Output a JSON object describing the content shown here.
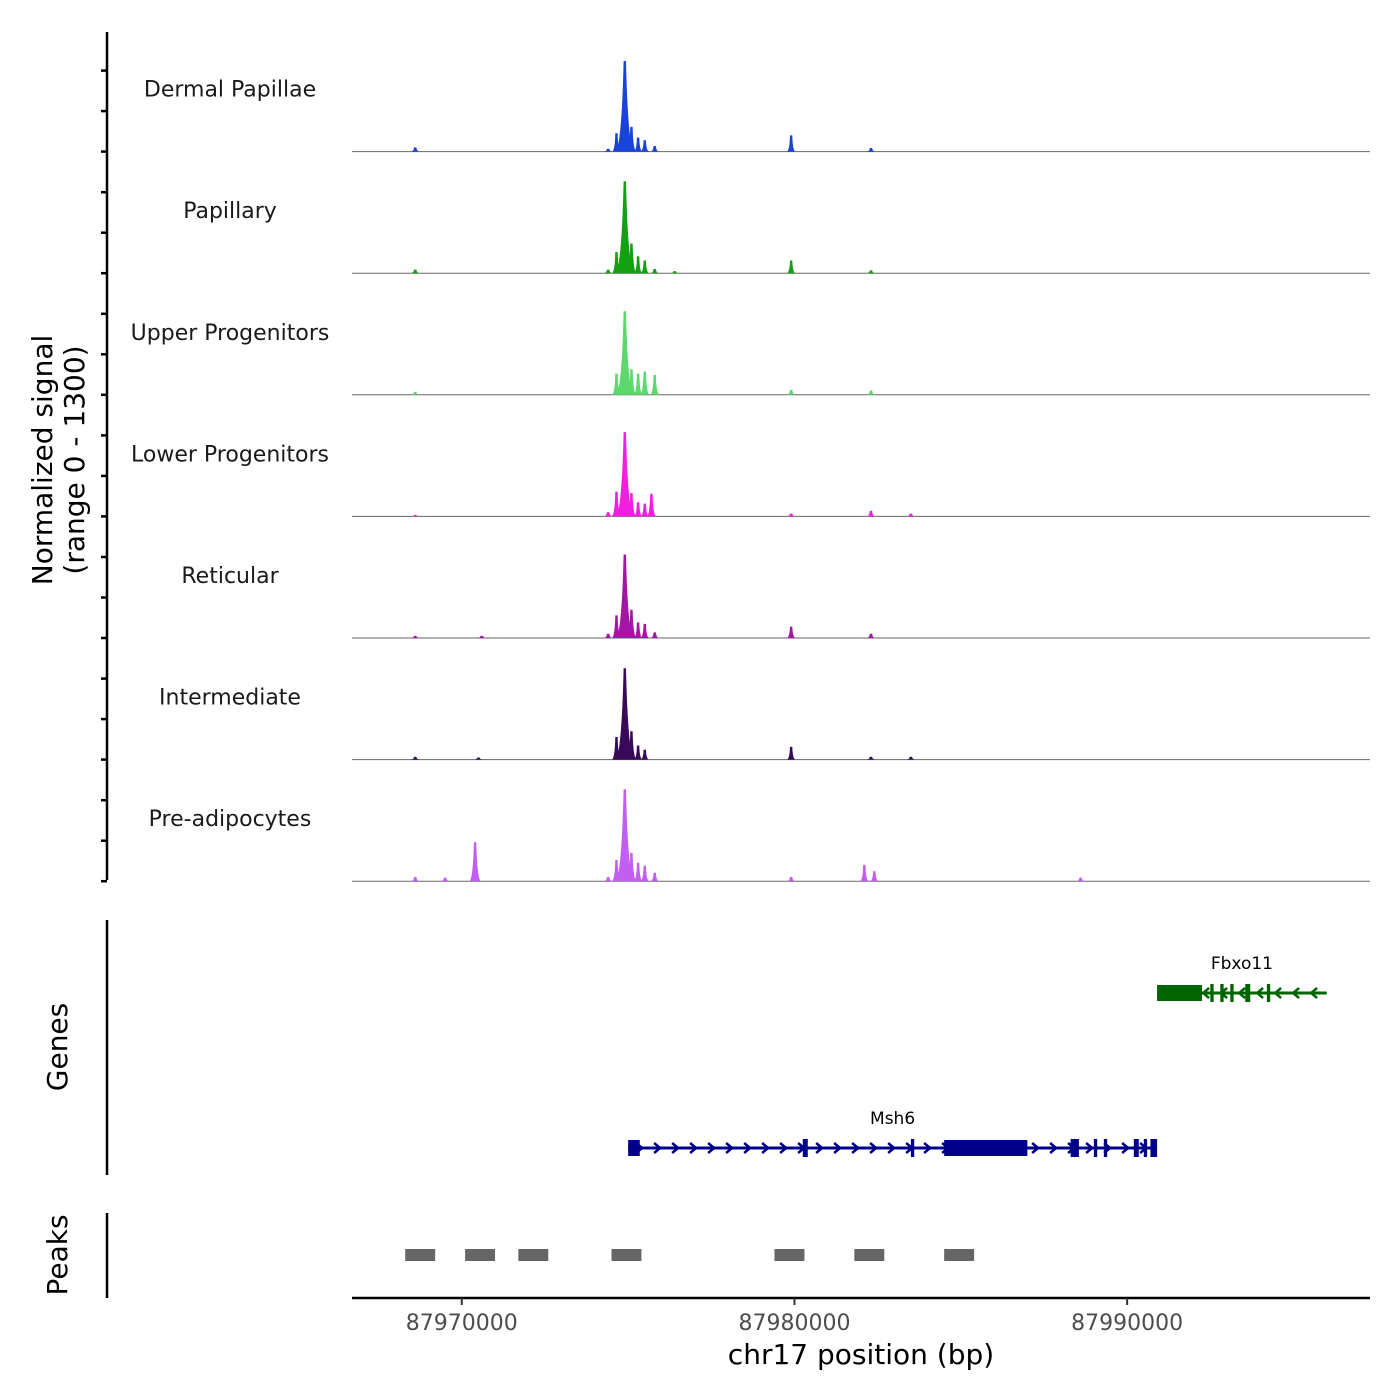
{
  "chart_data": {
    "type": "area",
    "title": "",
    "xlabel": "chr17 position (bp)",
    "ylabel_line1": "Normalized signal",
    "ylabel_line2": "(range 0 - 1300)",
    "xlim": [
      87966700,
      87997300
    ],
    "ylim": [
      0,
      1300
    ],
    "x_ticks": [
      87970000,
      87980000,
      87990000
    ],
    "x_tick_labels": [
      "87970000",
      "87980000",
      "87990000"
    ],
    "tracks": [
      {
        "name": "Dermal Papillae",
        "color": "#1a44d9",
        "peaks": [
          {
            "pos": 87968600,
            "height": 60
          },
          {
            "pos": 87974400,
            "height": 40
          },
          {
            "pos": 87974650,
            "height": 260
          },
          {
            "pos": 87974900,
            "height": 1280
          },
          {
            "pos": 87975100,
            "height": 350
          },
          {
            "pos": 87975300,
            "height": 200
          },
          {
            "pos": 87975500,
            "height": 160
          },
          {
            "pos": 87975800,
            "height": 80
          },
          {
            "pos": 87979900,
            "height": 230
          },
          {
            "pos": 87982300,
            "height": 50
          }
        ]
      },
      {
        "name": "Papillary",
        "color": "#13a013",
        "peaks": [
          {
            "pos": 87968600,
            "height": 50
          },
          {
            "pos": 87974400,
            "height": 50
          },
          {
            "pos": 87974650,
            "height": 300
          },
          {
            "pos": 87974900,
            "height": 1300
          },
          {
            "pos": 87975100,
            "height": 420
          },
          {
            "pos": 87975300,
            "height": 240
          },
          {
            "pos": 87975500,
            "height": 180
          },
          {
            "pos": 87975800,
            "height": 60
          },
          {
            "pos": 87976400,
            "height": 30
          },
          {
            "pos": 87979900,
            "height": 180
          },
          {
            "pos": 87982300,
            "height": 40
          }
        ]
      },
      {
        "name": "Upper Progenitors",
        "color": "#5cd86c",
        "peaks": [
          {
            "pos": 87968600,
            "height": 40
          },
          {
            "pos": 87974650,
            "height": 300
          },
          {
            "pos": 87974900,
            "height": 1180
          },
          {
            "pos": 87975100,
            "height": 360
          },
          {
            "pos": 87975300,
            "height": 300
          },
          {
            "pos": 87975500,
            "height": 330
          },
          {
            "pos": 87975800,
            "height": 280
          },
          {
            "pos": 87979900,
            "height": 70
          },
          {
            "pos": 87982300,
            "height": 60
          }
        ]
      },
      {
        "name": "Lower Progenitors",
        "color": "#f21fe2",
        "peaks": [
          {
            "pos": 87968600,
            "height": 20
          },
          {
            "pos": 87974400,
            "height": 60
          },
          {
            "pos": 87974650,
            "height": 350
          },
          {
            "pos": 87974900,
            "height": 1190
          },
          {
            "pos": 87975100,
            "height": 330
          },
          {
            "pos": 87975300,
            "height": 200
          },
          {
            "pos": 87975500,
            "height": 180
          },
          {
            "pos": 87975700,
            "height": 320
          },
          {
            "pos": 87979900,
            "height": 40
          },
          {
            "pos": 87982300,
            "height": 80
          },
          {
            "pos": 87983500,
            "height": 40
          }
        ]
      },
      {
        "name": "Reticular",
        "color": "#a514a5",
        "peaks": [
          {
            "pos": 87968600,
            "height": 30
          },
          {
            "pos": 87970600,
            "height": 30
          },
          {
            "pos": 87974400,
            "height": 60
          },
          {
            "pos": 87974650,
            "height": 320
          },
          {
            "pos": 87974900,
            "height": 1180
          },
          {
            "pos": 87975100,
            "height": 400
          },
          {
            "pos": 87975300,
            "height": 220
          },
          {
            "pos": 87975500,
            "height": 200
          },
          {
            "pos": 87975800,
            "height": 80
          },
          {
            "pos": 87979900,
            "height": 160
          },
          {
            "pos": 87982300,
            "height": 60
          }
        ]
      },
      {
        "name": "Intermediate",
        "color": "#3a0a5a",
        "peaks": [
          {
            "pos": 87968600,
            "height": 40
          },
          {
            "pos": 87970500,
            "height": 30
          },
          {
            "pos": 87974650,
            "height": 320
          },
          {
            "pos": 87974900,
            "height": 1290
          },
          {
            "pos": 87975100,
            "height": 400
          },
          {
            "pos": 87975300,
            "height": 200
          },
          {
            "pos": 87975500,
            "height": 140
          },
          {
            "pos": 87979900,
            "height": 180
          },
          {
            "pos": 87982300,
            "height": 40
          },
          {
            "pos": 87983500,
            "height": 40
          }
        ]
      },
      {
        "name": "Pre-adipocytes",
        "color": "#c25ef2",
        "peaks": [
          {
            "pos": 87968600,
            "height": 60
          },
          {
            "pos": 87969500,
            "height": 50
          },
          {
            "pos": 87970400,
            "height": 550
          },
          {
            "pos": 87974400,
            "height": 60
          },
          {
            "pos": 87974650,
            "height": 300
          },
          {
            "pos": 87974900,
            "height": 1300
          },
          {
            "pos": 87975100,
            "height": 400
          },
          {
            "pos": 87975300,
            "height": 260
          },
          {
            "pos": 87975500,
            "height": 220
          },
          {
            "pos": 87975800,
            "height": 120
          },
          {
            "pos": 87979900,
            "height": 60
          },
          {
            "pos": 87982100,
            "height": 230
          },
          {
            "pos": 87982400,
            "height": 140
          },
          {
            "pos": 87988600,
            "height": 50
          }
        ]
      }
    ],
    "genes_label": "Genes",
    "genes": [
      {
        "name": "Fbxo11",
        "strand": "-",
        "start": 87990900,
        "end": 87996000,
        "color": "#006400",
        "exons": [
          [
            87990900,
            87992250
          ],
          [
            87992500,
            87992600
          ],
          [
            87992800,
            87992900
          ],
          [
            87993100,
            87993200
          ],
          [
            87993550,
            87993700
          ],
          [
            87994200,
            87994300
          ]
        ]
      },
      {
        "name": "Msh6",
        "strand": "+",
        "start": 87975000,
        "end": 87990900,
        "color": "#00008b",
        "exons": [
          [
            87975000,
            87975350
          ],
          [
            87980250,
            87980400
          ],
          [
            87983500,
            87983600
          ],
          [
            87984500,
            87987000
          ],
          [
            87988300,
            87988550
          ],
          [
            87989000,
            87989100
          ],
          [
            87989300,
            87989400
          ],
          [
            87990200,
            87990350
          ],
          [
            87990500,
            87990600
          ],
          [
            87990700,
            87990900
          ]
        ]
      }
    ],
    "peaks_label": "Peaks",
    "peak_regions": [
      [
        87968300,
        87969200
      ],
      [
        87970100,
        87971000
      ],
      [
        87971700,
        87972600
      ],
      [
        87974500,
        87975400
      ],
      [
        87979400,
        87980300
      ],
      [
        87981800,
        87982700
      ],
      [
        87984500,
        87985400
      ]
    ],
    "peak_color": "#666666"
  }
}
